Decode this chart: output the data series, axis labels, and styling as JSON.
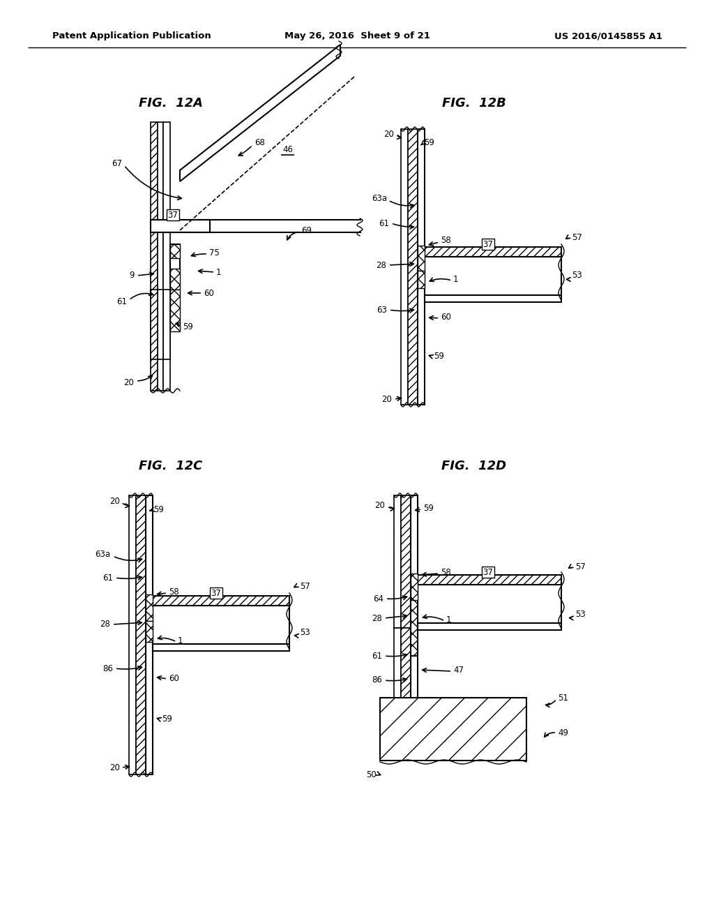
{
  "background_color": "#ffffff",
  "header_left": "Patent Application Publication",
  "header_center": "May 26, 2016  Sheet 9 of 21",
  "header_right": "US 2016/0145855 A1",
  "fig_titles": [
    "FIG.  12A",
    "FIG.  12B",
    "FIG.  12C",
    "FIG.  12D"
  ]
}
